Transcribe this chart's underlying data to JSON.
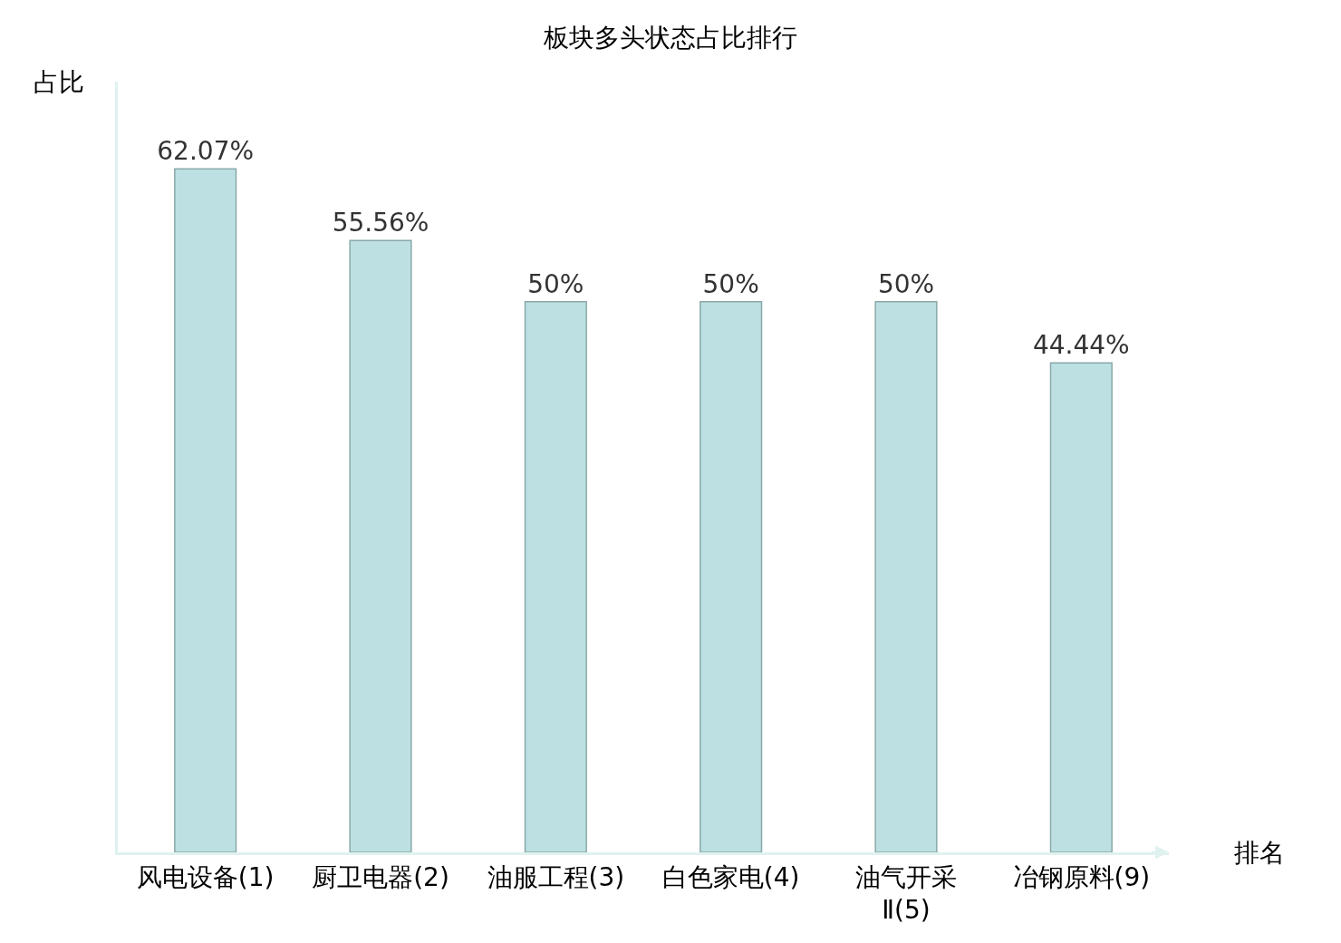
{
  "chart_data": {
    "type": "bar",
    "title": "板块多头状态占比排行",
    "xlabel": "排名",
    "ylabel": "占比",
    "categories": [
      "风电设备(1)",
      "厨卫电器(2)",
      "油服工程(3)",
      "白色家电(4)",
      "油气开采Ⅱ(5)",
      "冶钢原料(9)"
    ],
    "values": [
      62.07,
      55.56,
      50,
      50,
      50,
      44.44
    ],
    "value_labels": [
      "62.07%",
      "55.56%",
      "50%",
      "50%",
      "50%",
      "44.44%"
    ],
    "color": "#bde0e3",
    "ylim": [
      0,
      70
    ],
    "tick_labels": "x"
  }
}
